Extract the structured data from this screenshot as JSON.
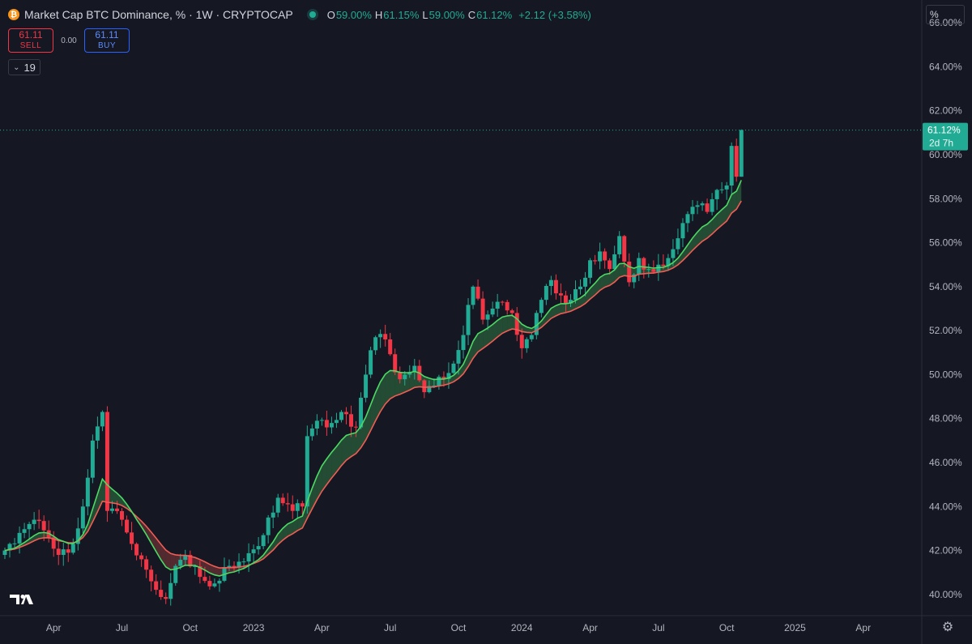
{
  "header": {
    "symbol_title": "Market Cap BTC Dominance, % · 1W · CRYPTOCAP",
    "coin_icon": "bitcoin-icon",
    "ohlc": [
      {
        "key": "O",
        "value": "59.00%"
      },
      {
        "key": "H",
        "value": "61.15%"
      },
      {
        "key": "L",
        "value": "59.00%"
      },
      {
        "key": "C",
        "value": "61.12%"
      }
    ],
    "change": "+2.12 (+3.58%)"
  },
  "trade": {
    "sell_price": "61.11",
    "sell_label": "SELL",
    "spread": "0.00",
    "buy_price": "61.11",
    "buy_label": "BUY"
  },
  "indicators_toggle": {
    "label": "19"
  },
  "price_scale_unit": "%",
  "last_price": {
    "value": "61.12%",
    "countdown": "2d 7h"
  },
  "colors": {
    "up": "#22ab94",
    "down": "#f23645",
    "ema_fast": "#4cd964",
    "ema_slow": "#f25c54",
    "background": "#151722"
  },
  "chart_data": {
    "type": "candlestick",
    "timeframe": "1W",
    "ylim": [
      39.0,
      67.0
    ],
    "yticks": [
      "40.00%",
      "42.00%",
      "44.00%",
      "46.00%",
      "48.00%",
      "50.00%",
      "52.00%",
      "54.00%",
      "56.00%",
      "58.00%",
      "60.00%",
      "62.00%",
      "64.00%",
      "66.00%"
    ],
    "ytick_values": [
      40,
      42,
      44,
      46,
      48,
      50,
      52,
      54,
      56,
      58,
      60,
      62,
      64,
      66
    ],
    "xlim": [
      0,
      187
    ],
    "xticks": [
      {
        "label": "Apr",
        "week": 10
      },
      {
        "label": "Jul",
        "week": 24
      },
      {
        "label": "Oct",
        "week": 38
      },
      {
        "label": "2023",
        "week": 51
      },
      {
        "label": "Apr",
        "week": 65
      },
      {
        "label": "Jul",
        "week": 79
      },
      {
        "label": "Oct",
        "week": 93
      },
      {
        "label": "2024",
        "week": 106
      },
      {
        "label": "Apr",
        "week": 120
      },
      {
        "label": "Jul",
        "week": 134
      },
      {
        "label": "Oct",
        "week": 148
      },
      {
        "label": "2025",
        "week": 162
      },
      {
        "label": "Apr",
        "week": 176
      }
    ],
    "close_anchors": [
      [
        0,
        42.0
      ],
      [
        3,
        42.8
      ],
      [
        6,
        43.4
      ],
      [
        9,
        42.6
      ],
      [
        11,
        41.8
      ],
      [
        14,
        42.3
      ],
      [
        16,
        44.0
      ],
      [
        18,
        47.0
      ],
      [
        20,
        48.3
      ],
      [
        21,
        43.8
      ],
      [
        24,
        43.4
      ],
      [
        26,
        42.3
      ],
      [
        28,
        41.6
      ],
      [
        30,
        40.6
      ],
      [
        33,
        39.8
      ],
      [
        35,
        41.3
      ],
      [
        37,
        41.8
      ],
      [
        40,
        40.8
      ],
      [
        43,
        40.5
      ],
      [
        46,
        41.3
      ],
      [
        49,
        41.5
      ],
      [
        52,
        42.2
      ],
      [
        54,
        43.5
      ],
      [
        56,
        44.4
      ],
      [
        59,
        43.8
      ],
      [
        61,
        44.0
      ],
      [
        62,
        47.2
      ],
      [
        64,
        47.9
      ],
      [
        66,
        47.6
      ],
      [
        69,
        48.3
      ],
      [
        72,
        47.6
      ],
      [
        74,
        50.0
      ],
      [
        76,
        51.7
      ],
      [
        78,
        51.6
      ],
      [
        80,
        50.1
      ],
      [
        82,
        50.0
      ],
      [
        84,
        50.4
      ],
      [
        86,
        49.2
      ],
      [
        88,
        49.5
      ],
      [
        90,
        49.8
      ],
      [
        92,
        50.5
      ],
      [
        94,
        51.8
      ],
      [
        96,
        54.0
      ],
      [
        98,
        52.5
      ],
      [
        100,
        53.0
      ],
      [
        102,
        53.3
      ],
      [
        104,
        52.8
      ],
      [
        106,
        51.2
      ],
      [
        108,
        51.8
      ],
      [
        110,
        53.4
      ],
      [
        112,
        54.3
      ],
      [
        114,
        53.6
      ],
      [
        116,
        53.4
      ],
      [
        118,
        54.0
      ],
      [
        120,
        55.2
      ],
      [
        122,
        55.6
      ],
      [
        124,
        54.8
      ],
      [
        126,
        56.3
      ],
      [
        128,
        54.2
      ],
      [
        130,
        55.3
      ],
      [
        132,
        54.8
      ],
      [
        134,
        55.0
      ],
      [
        136,
        55.3
      ],
      [
        138,
        56.2
      ],
      [
        140,
        57.3
      ],
      [
        142,
        57.7
      ],
      [
        144,
        57.4
      ],
      [
        146,
        58.4
      ],
      [
        148,
        58.6
      ],
      [
        149,
        60.4
      ],
      [
        150,
        59.0
      ],
      [
        151,
        61.12
      ]
    ],
    "series": [
      {
        "type": "candles",
        "first_week": 0,
        "last_week": 151,
        "last_bar": {
          "open": 59.0,
          "high": 61.15,
          "low": 59.0,
          "close": 61.12
        }
      },
      {
        "type": "ema_fast",
        "ribbon": true
      },
      {
        "type": "ema_slow",
        "ribbon": true
      }
    ],
    "last_value_line": 61.12,
    "grid": false,
    "legend": "top-left"
  }
}
